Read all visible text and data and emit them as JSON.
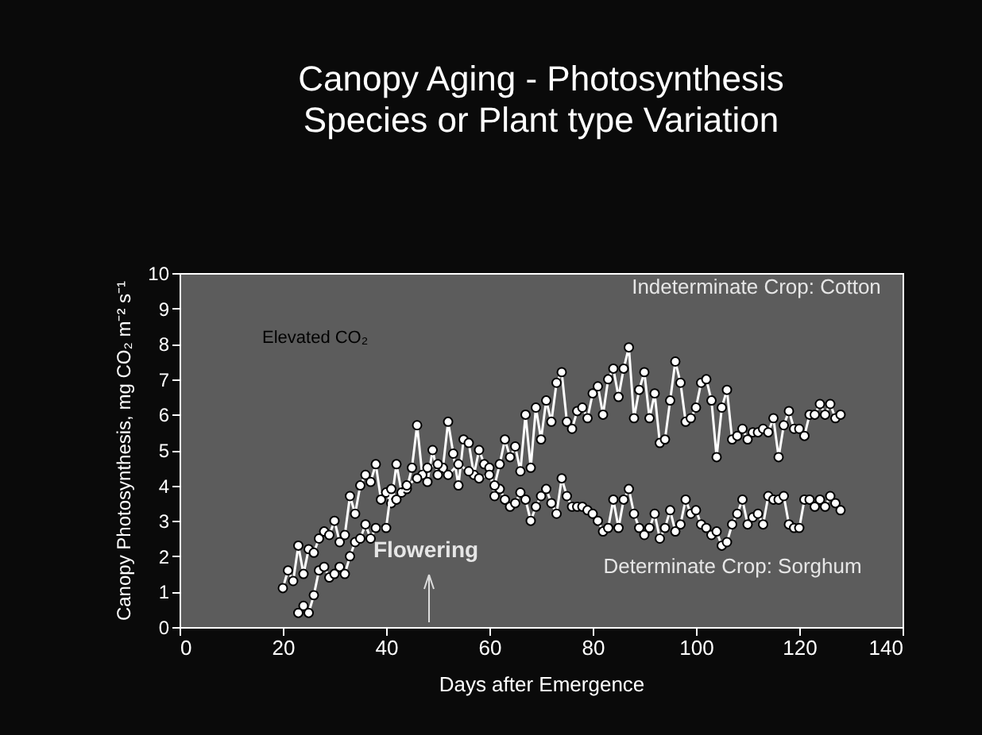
{
  "chart_data": {
    "type": "line",
    "title": "Canopy Aging - Photosynthesis",
    "subtitle": "Species or Plant type Variation",
    "xlabel": "Days after Emergence",
    "ylabel": "Canopy Photosynthesis, mg CO₂ m⁻² s⁻¹",
    "xlim": [
      0,
      140
    ],
    "xticks": [
      0,
      20,
      40,
      60,
      80,
      100,
      120,
      140
    ],
    "ylim": [
      0,
      10
    ],
    "yticks": [
      0,
      1,
      2,
      3,
      4,
      5,
      6,
      7,
      8,
      9,
      10
    ],
    "grid": false,
    "marker": "circle",
    "line_style": "solid",
    "series": [
      {
        "color": "#ffffff",
        "x": [
          20,
          21,
          22,
          23,
          24,
          25,
          26,
          27,
          28,
          29,
          30,
          31,
          32,
          33,
          34,
          35,
          36,
          37,
          38,
          39,
          40,
          41,
          42,
          43,
          44,
          45,
          46,
          47,
          48,
          49,
          50,
          51,
          52,
          53,
          54,
          55,
          56,
          57,
          58,
          59,
          60,
          61,
          62,
          63,
          64,
          65,
          66,
          67,
          68,
          69,
          70,
          71,
          72,
          73,
          74,
          75,
          76,
          77,
          78,
          79,
          80,
          81,
          82,
          83,
          84,
          85,
          86,
          87,
          88,
          89,
          90,
          91,
          92,
          93,
          94,
          95,
          96,
          97,
          98,
          99,
          100,
          101,
          102,
          103,
          104,
          105,
          106,
          107,
          108,
          109,
          110,
          111,
          112,
          113,
          114,
          115,
          116,
          117,
          118,
          119,
          120,
          121,
          122,
          123,
          124,
          125,
          126,
          127,
          128
        ],
        "values": [
          1.1,
          1.6,
          1.3,
          2.3,
          1.5,
          2.2,
          2.1,
          2.5,
          2.7,
          2.6,
          3.0,
          2.4,
          2.6,
          3.7,
          3.2,
          4.0,
          4.3,
          4.1,
          4.6,
          3.6,
          3.8,
          3.5,
          4.6,
          3.8,
          3.9,
          4.5,
          5.7,
          4.3,
          4.1,
          5.0,
          4.3,
          4.5,
          5.8,
          4.9,
          4.0,
          5.3,
          5.2,
          4.3,
          5.0,
          4.6,
          4.5,
          3.7,
          3.9,
          3.6,
          3.4,
          3.5,
          3.8,
          3.6,
          3.0,
          3.4,
          3.7,
          3.9,
          3.5,
          3.2,
          4.2,
          3.7,
          3.4,
          3.4,
          3.4,
          3.3,
          3.2,
          3.0,
          2.7,
          2.8,
          3.6,
          2.8,
          3.6,
          3.9,
          3.2,
          2.8,
          2.6,
          2.8,
          3.2,
          2.5,
          2.8,
          3.3,
          2.7,
          2.9,
          3.6,
          3.2,
          3.3,
          2.9,
          2.8,
          2.6,
          2.7,
          2.3,
          2.4,
          2.9,
          3.2,
          3.6,
          2.9,
          3.1,
          3.2,
          2.9,
          3.7,
          3.6,
          3.6,
          3.7,
          2.9,
          2.8,
          2.8,
          3.6,
          3.6,
          3.4,
          3.6,
          3.4,
          3.7,
          3.5,
          3.3
        ]
      },
      {
        "color": "#ffffff",
        "x": [
          23,
          24,
          25,
          26,
          27,
          28,
          29,
          30,
          31,
          32,
          33,
          34,
          35,
          36,
          37,
          38,
          40,
          41,
          42,
          44,
          46,
          48,
          50,
          52,
          54,
          56,
          58,
          60,
          61,
          62,
          63,
          64,
          65,
          66,
          67,
          68,
          69,
          70,
          71,
          72,
          73,
          74,
          75,
          76,
          77,
          78,
          79,
          80,
          81,
          82,
          83,
          84,
          85,
          86,
          87,
          88,
          89,
          90,
          91,
          92,
          93,
          94,
          95,
          96,
          97,
          98,
          99,
          100,
          101,
          102,
          103,
          104,
          105,
          106,
          107,
          108,
          109,
          110,
          111,
          112,
          113,
          114,
          115,
          116,
          117,
          118,
          119,
          120,
          121,
          122,
          123,
          124,
          125,
          126,
          127,
          128
        ],
        "values": [
          0.4,
          0.6,
          0.4,
          0.9,
          1.6,
          1.7,
          1.4,
          1.5,
          1.7,
          1.5,
          2.0,
          2.4,
          2.5,
          2.9,
          2.5,
          2.8,
          2.8,
          3.9,
          3.6,
          4.0,
          4.2,
          4.5,
          4.6,
          4.3,
          4.6,
          4.4,
          4.2,
          4.3,
          4.0,
          4.6,
          5.3,
          4.8,
          5.1,
          4.4,
          6.0,
          4.5,
          6.2,
          5.3,
          6.4,
          5.8,
          6.9,
          7.2,
          5.8,
          5.6,
          6.1,
          6.2,
          5.9,
          6.6,
          6.8,
          6.0,
          7.0,
          7.3,
          6.5,
          7.3,
          7.9,
          5.9,
          6.7,
          7.2,
          5.9,
          6.6,
          5.2,
          5.3,
          6.4,
          7.5,
          6.9,
          5.8,
          5.9,
          6.2,
          6.9,
          7.0,
          6.4,
          4.8,
          6.2,
          6.7,
          5.3,
          5.4,
          5.6,
          5.3,
          5.5,
          5.5,
          5.6,
          5.5,
          5.9,
          4.8,
          5.7,
          6.1,
          5.6,
          5.6,
          5.4,
          6.0,
          6.0,
          6.3,
          6.0,
          6.3,
          5.9,
          6.0
        ]
      }
    ],
    "annotations": [
      "Elevated CO₂",
      "Indeterminate Crop: Cotton",
      "Determinate Crop: Sorghum",
      "Flowering"
    ]
  }
}
